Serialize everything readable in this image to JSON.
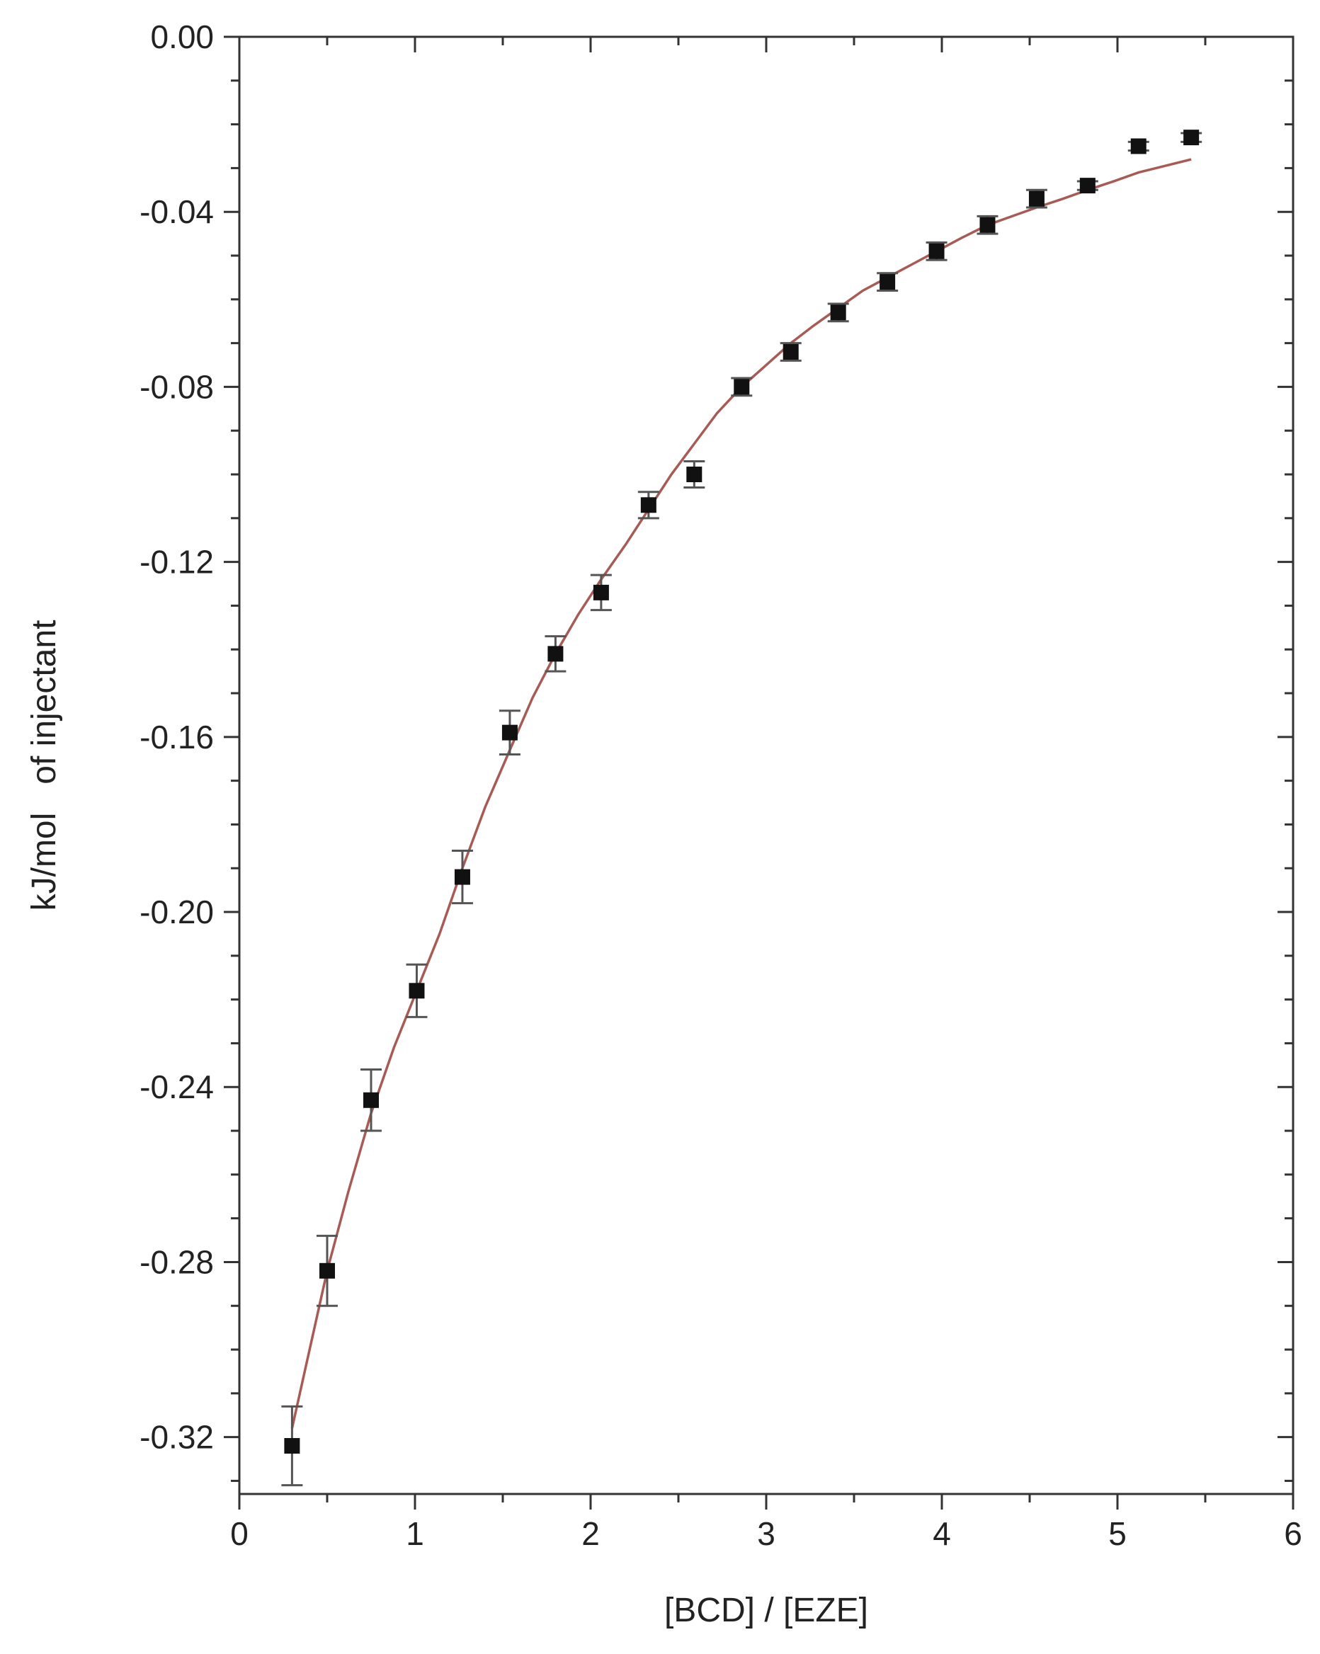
{
  "chart_data": {
    "type": "scatter",
    "title": "",
    "xlabel": "[BCD] / [EZE]",
    "ylabel": "kJ/mol   of injectant",
    "xlim": [
      0,
      6
    ],
    "ylim": [
      -0.333,
      0.0
    ],
    "x_ticks": [
      0,
      1,
      2,
      3,
      4,
      5,
      6
    ],
    "x_tick_labels": [
      "0",
      "1",
      "2",
      "3",
      "4",
      "5",
      "6"
    ],
    "y_ticks": [
      0.0,
      -0.04,
      -0.08,
      -0.12,
      -0.16,
      -0.2,
      -0.24,
      -0.28,
      -0.32
    ],
    "y_tick_labels": [
      "0.00",
      "-0.04",
      "-0.08",
      "-0.12",
      "-0.16",
      "-0.20",
      "-0.24",
      "-0.28",
      "-0.32"
    ],
    "grid": false,
    "colors": {
      "points": "#111111",
      "error_bars": "#555555",
      "fit_line": "#a85a55",
      "axes": "#333333"
    },
    "series": [
      {
        "kind": "points_with_error_bars",
        "x": [
          0.3,
          0.5,
          0.75,
          1.01,
          1.27,
          1.54,
          1.8,
          2.06,
          2.33,
          2.59,
          2.86,
          3.14,
          3.41,
          3.69,
          3.97,
          4.26,
          4.54,
          4.83,
          5.12,
          5.42
        ],
        "y": [
          -0.322,
          -0.282,
          -0.243,
          -0.218,
          -0.192,
          -0.159,
          -0.141,
          -0.127,
          -0.107,
          -0.1,
          -0.08,
          -0.072,
          -0.063,
          -0.056,
          -0.049,
          -0.043,
          -0.037,
          -0.034,
          -0.025,
          -0.023
        ],
        "error": [
          0.009,
          0.008,
          0.007,
          0.006,
          0.006,
          0.005,
          0.004,
          0.004,
          0.003,
          0.003,
          0.002,
          0.002,
          0.002,
          0.002,
          0.002,
          0.002,
          0.002,
          0.001,
          0.001,
          0.001
        ]
      },
      {
        "kind": "fit_line",
        "x": [
          0.3,
          0.4,
          0.5,
          0.62,
          0.75,
          0.88,
          1.01,
          1.14,
          1.27,
          1.4,
          1.54,
          1.67,
          1.8,
          1.93,
          2.06,
          2.2,
          2.33,
          2.46,
          2.59,
          2.72,
          2.86,
          3.0,
          3.14,
          3.27,
          3.41,
          3.55,
          3.69,
          3.83,
          3.97,
          4.11,
          4.26,
          4.4,
          4.54,
          4.69,
          4.83,
          4.98,
          5.12,
          5.27,
          5.42
        ],
        "y": [
          -0.318,
          -0.3,
          -0.282,
          -0.264,
          -0.246,
          -0.231,
          -0.218,
          -0.205,
          -0.19,
          -0.176,
          -0.163,
          -0.151,
          -0.141,
          -0.132,
          -0.124,
          -0.116,
          -0.108,
          -0.1,
          -0.093,
          -0.086,
          -0.08,
          -0.075,
          -0.07,
          -0.066,
          -0.062,
          -0.058,
          -0.055,
          -0.052,
          -0.049,
          -0.046,
          -0.043,
          -0.041,
          -0.039,
          -0.037,
          -0.035,
          -0.033,
          -0.031,
          -0.0295,
          -0.028
        ]
      }
    ]
  }
}
